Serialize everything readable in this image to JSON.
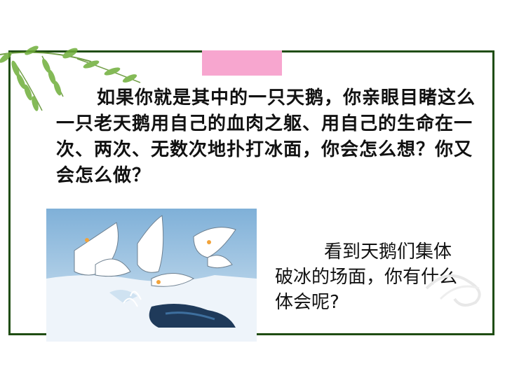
{
  "slide": {
    "question_main": "如果你就是其中的一只天鹅，你亲眼目睹这么一只老天鹅用自己的血肉之躯、用自己的生命在一次、两次、无数次地扑打冰面，你会怎么想？你又会怎么做？",
    "question_secondary": "看到天鹅们集体破冰的场面，你有什么体会呢?",
    "illustration_icon": "swans-breaking-ice-illustration",
    "decoration_icon": "willow-branch-icon"
  },
  "colors": {
    "frame": "#1f4d12",
    "tab": "#f7a6cf",
    "background": "#ffffff",
    "text": "#111111"
  }
}
